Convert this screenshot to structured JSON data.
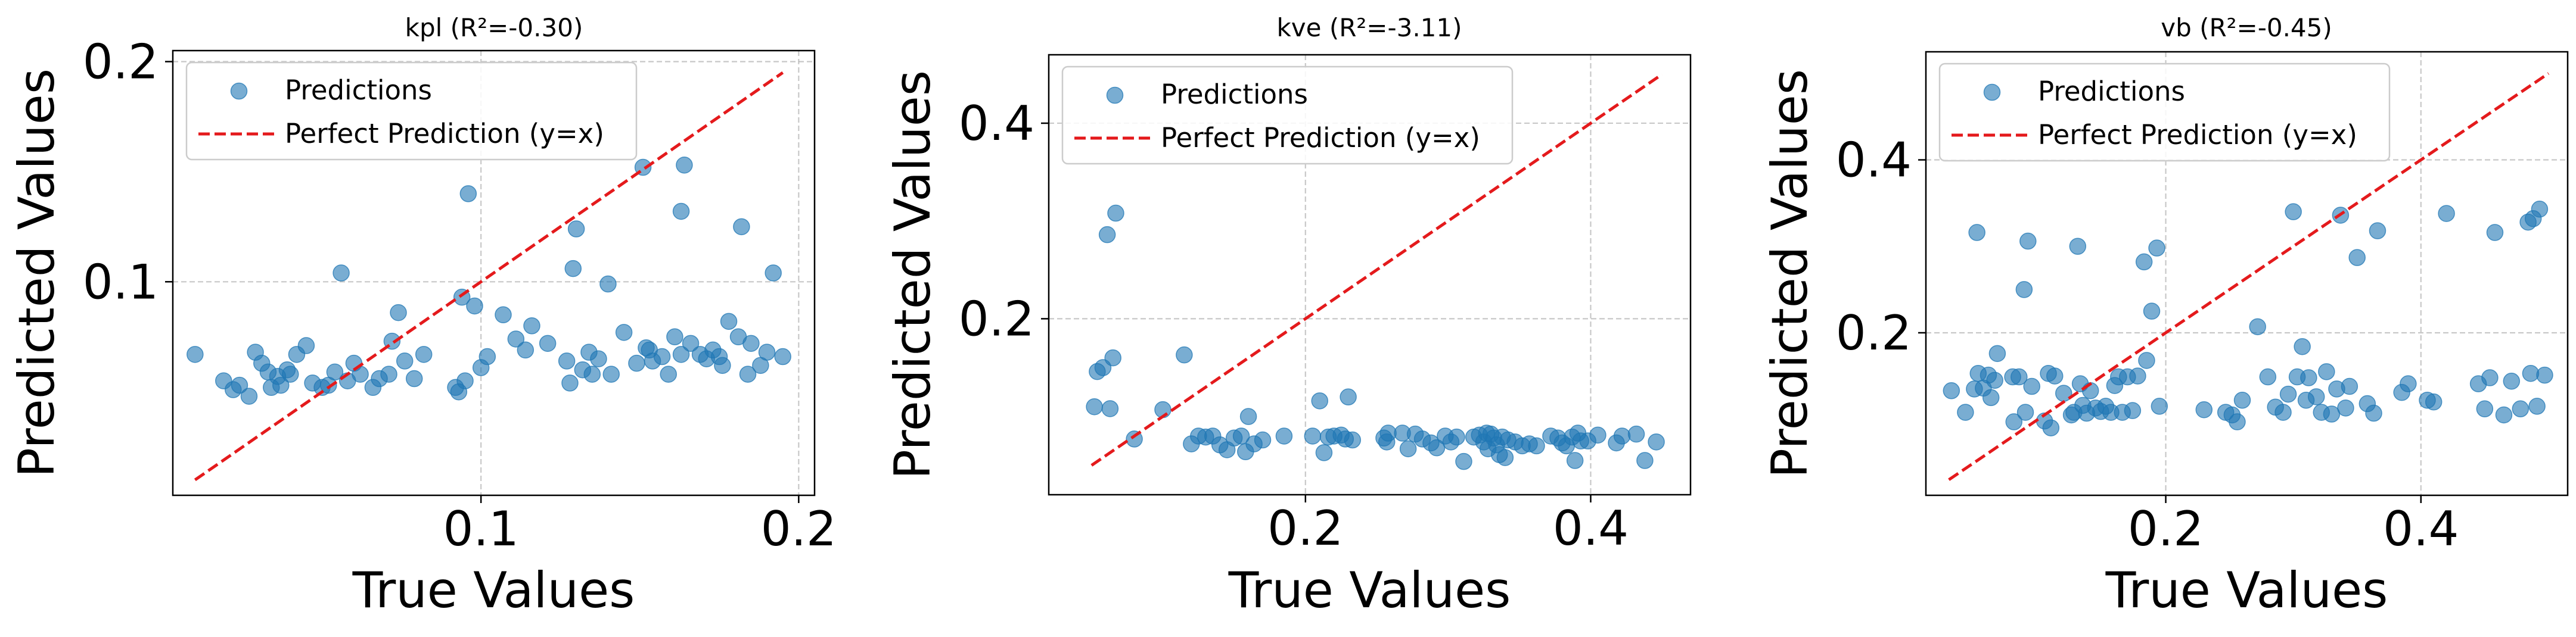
{
  "chart_data": [
    {
      "type": "scatter",
      "title": "kpl (R²=-0.30)",
      "xlabel": "True Values",
      "ylabel": "Predicted Values",
      "xlim": [
        0.003,
        0.205
      ],
      "ylim": [
        0.003,
        0.205
      ],
      "xticks": [
        0.1,
        0.2
      ],
      "xtick_labels": [
        "0.1",
        "0.2"
      ],
      "yticks": [
        0.1,
        0.2
      ],
      "ytick_labels": [
        "0.1",
        "0.2"
      ],
      "grid": true,
      "legend": {
        "position": "top-left",
        "entries": [
          "Predictions",
          "Perfect Prediction (y=x)"
        ]
      },
      "reference_line": [
        0.01,
        0.195
      ],
      "series": [
        {
          "name": "Predictions",
          "color": "#1f77b4",
          "points": [
            [
              0.01,
              0.067
            ],
            [
              0.019,
              0.055
            ],
            [
              0.022,
              0.051
            ],
            [
              0.024,
              0.053
            ],
            [
              0.027,
              0.048
            ],
            [
              0.029,
              0.068
            ],
            [
              0.031,
              0.063
            ],
            [
              0.033,
              0.059
            ],
            [
              0.034,
              0.052
            ],
            [
              0.036,
              0.057
            ],
            [
              0.037,
              0.053
            ],
            [
              0.039,
              0.06
            ],
            [
              0.04,
              0.058
            ],
            [
              0.042,
              0.067
            ],
            [
              0.045,
              0.071
            ],
            [
              0.047,
              0.054
            ],
            [
              0.05,
              0.052
            ],
            [
              0.052,
              0.053
            ],
            [
              0.054,
              0.059
            ],
            [
              0.056,
              0.104
            ],
            [
              0.058,
              0.055
            ],
            [
              0.06,
              0.063
            ],
            [
              0.062,
              0.058
            ],
            [
              0.066,
              0.052
            ],
            [
              0.068,
              0.056
            ],
            [
              0.071,
              0.058
            ],
            [
              0.072,
              0.073
            ],
            [
              0.074,
              0.086
            ],
            [
              0.076,
              0.064
            ],
            [
              0.079,
              0.056
            ],
            [
              0.082,
              0.067
            ],
            [
              0.092,
              0.052
            ],
            [
              0.093,
              0.05
            ],
            [
              0.094,
              0.093
            ],
            [
              0.095,
              0.055
            ],
            [
              0.096,
              0.14
            ],
            [
              0.098,
              0.089
            ],
            [
              0.1,
              0.061
            ],
            [
              0.102,
              0.066
            ],
            [
              0.107,
              0.085
            ],
            [
              0.111,
              0.074
            ],
            [
              0.114,
              0.069
            ],
            [
              0.116,
              0.08
            ],
            [
              0.121,
              0.072
            ],
            [
              0.127,
              0.064
            ],
            [
              0.128,
              0.054
            ],
            [
              0.129,
              0.106
            ],
            [
              0.13,
              0.124
            ],
            [
              0.132,
              0.06
            ],
            [
              0.134,
              0.068
            ],
            [
              0.135,
              0.058
            ],
            [
              0.137,
              0.065
            ],
            [
              0.14,
              0.099
            ],
            [
              0.141,
              0.058
            ],
            [
              0.145,
              0.077
            ],
            [
              0.149,
              0.063
            ],
            [
              0.151,
              0.152
            ],
            [
              0.152,
              0.07
            ],
            [
              0.153,
              0.069
            ],
            [
              0.154,
              0.064
            ],
            [
              0.157,
              0.066
            ],
            [
              0.159,
              0.058
            ],
            [
              0.161,
              0.075
            ],
            [
              0.163,
              0.132
            ],
            [
              0.163,
              0.067
            ],
            [
              0.164,
              0.153
            ],
            [
              0.166,
              0.072
            ],
            [
              0.169,
              0.067
            ],
            [
              0.171,
              0.065
            ],
            [
              0.173,
              0.069
            ],
            [
              0.175,
              0.066
            ],
            [
              0.176,
              0.062
            ],
            [
              0.178,
              0.082
            ],
            [
              0.181,
              0.075
            ],
            [
              0.182,
              0.125
            ],
            [
              0.184,
              0.058
            ],
            [
              0.185,
              0.072
            ],
            [
              0.188,
              0.062
            ],
            [
              0.19,
              0.068
            ],
            [
              0.192,
              0.104
            ],
            [
              0.195,
              0.066
            ]
          ]
        }
      ]
    },
    {
      "type": "scatter",
      "title": "kve (R²=-3.11)",
      "xlabel": "True Values",
      "ylabel": "Predicted Values",
      "xlim": [
        0.02,
        0.47
      ],
      "ylim": [
        0.02,
        0.47
      ],
      "xticks": [
        0.2,
        0.4
      ],
      "xtick_labels": [
        "0.2",
        "0.4"
      ],
      "yticks": [
        0.2,
        0.4
      ],
      "ytick_labels": [
        "0.2",
        "0.4"
      ],
      "grid": true,
      "legend": {
        "position": "top-left",
        "entries": [
          "Predictions",
          "Perfect Prediction (y=x)"
        ]
      },
      "reference_line": [
        0.05,
        0.45
      ],
      "series": [
        {
          "name": "Predictions",
          "color": "#1f77b4",
          "points": [
            [
              0.052,
              0.11
            ],
            [
              0.054,
              0.146
            ],
            [
              0.058,
              0.15
            ],
            [
              0.061,
              0.286
            ],
            [
              0.063,
              0.108
            ],
            [
              0.065,
              0.16
            ],
            [
              0.067,
              0.308
            ],
            [
              0.08,
              0.077
            ],
            [
              0.1,
              0.107
            ],
            [
              0.115,
              0.163
            ],
            [
              0.12,
              0.072
            ],
            [
              0.125,
              0.08
            ],
            [
              0.13,
              0.079
            ],
            [
              0.135,
              0.08
            ],
            [
              0.14,
              0.071
            ],
            [
              0.145,
              0.066
            ],
            [
              0.15,
              0.078
            ],
            [
              0.155,
              0.08
            ],
            [
              0.158,
              0.064
            ],
            [
              0.16,
              0.1
            ],
            [
              0.164,
              0.072
            ],
            [
              0.17,
              0.076
            ],
            [
              0.185,
              0.08
            ],
            [
              0.205,
              0.08
            ],
            [
              0.21,
              0.116
            ],
            [
              0.213,
              0.063
            ],
            [
              0.216,
              0.079
            ],
            [
              0.22,
              0.08
            ],
            [
              0.225,
              0.081
            ],
            [
              0.228,
              0.077
            ],
            [
              0.23,
              0.12
            ],
            [
              0.233,
              0.076
            ],
            [
              0.255,
              0.078
            ],
            [
              0.257,
              0.074
            ],
            [
              0.258,
              0.083
            ],
            [
              0.268,
              0.083
            ],
            [
              0.272,
              0.067
            ],
            [
              0.277,
              0.082
            ],
            [
              0.282,
              0.077
            ],
            [
              0.288,
              0.073
            ],
            [
              0.292,
              0.068
            ],
            [
              0.298,
              0.08
            ],
            [
              0.302,
              0.074
            ],
            [
              0.306,
              0.079
            ],
            [
              0.311,
              0.054
            ],
            [
              0.318,
              0.079
            ],
            [
              0.322,
              0.081
            ],
            [
              0.325,
              0.074
            ],
            [
              0.327,
              0.083
            ],
            [
              0.328,
              0.067
            ],
            [
              0.33,
              0.082
            ],
            [
              0.332,
              0.078
            ],
            [
              0.334,
              0.071
            ],
            [
              0.336,
              0.061
            ],
            [
              0.338,
              0.079
            ],
            [
              0.34,
              0.058
            ],
            [
              0.342,
              0.076
            ],
            [
              0.347,
              0.074
            ],
            [
              0.352,
              0.07
            ],
            [
              0.357,
              0.072
            ],
            [
              0.362,
              0.07
            ],
            [
              0.372,
              0.08
            ],
            [
              0.377,
              0.078
            ],
            [
              0.38,
              0.073
            ],
            [
              0.383,
              0.07
            ],
            [
              0.387,
              0.079
            ],
            [
              0.389,
              0.055
            ],
            [
              0.391,
              0.083
            ],
            [
              0.393,
              0.075
            ],
            [
              0.398,
              0.075
            ],
            [
              0.405,
              0.081
            ],
            [
              0.418,
              0.073
            ],
            [
              0.422,
              0.08
            ],
            [
              0.432,
              0.082
            ],
            [
              0.438,
              0.055
            ],
            [
              0.446,
              0.074
            ]
          ]
        }
      ]
    },
    {
      "type": "scatter",
      "title": "vb (R²=-0.45)",
      "xlabel": "True Values",
      "ylabel": "Predicted Values",
      "xlim": [
        0.012,
        0.515
      ],
      "ylim": [
        0.012,
        0.525
      ],
      "xticks": [
        0.2,
        0.4
      ],
      "xtick_labels": [
        "0.2",
        "0.4"
      ],
      "yticks": [
        0.2,
        0.4
      ],
      "ytick_labels": [
        "0.2",
        "0.4"
      ],
      "grid": true,
      "legend": {
        "position": "top-left",
        "entries": [
          "Predictions",
          "Perfect Prediction (y=x)"
        ]
      },
      "reference_line": [
        0.03,
        0.5
      ],
      "series": [
        {
          "name": "Predictions",
          "color": "#1f77b4",
          "points": [
            [
              0.032,
              0.133
            ],
            [
              0.043,
              0.108
            ],
            [
              0.05,
              0.135
            ],
            [
              0.052,
              0.316
            ],
            [
              0.053,
              0.153
            ],
            [
              0.057,
              0.136
            ],
            [
              0.061,
              0.151
            ],
            [
              0.063,
              0.125
            ],
            [
              0.066,
              0.145
            ],
            [
              0.068,
              0.176
            ],
            [
              0.08,
              0.149
            ],
            [
              0.081,
              0.097
            ],
            [
              0.085,
              0.149
            ],
            [
              0.089,
              0.25
            ],
            [
              0.09,
              0.108
            ],
            [
              0.092,
              0.306
            ],
            [
              0.095,
              0.138
            ],
            [
              0.105,
              0.098
            ],
            [
              0.108,
              0.153
            ],
            [
              0.11,
              0.09
            ],
            [
              0.113,
              0.15
            ],
            [
              0.12,
              0.13
            ],
            [
              0.126,
              0.105
            ],
            [
              0.128,
              0.108
            ],
            [
              0.131,
              0.3
            ],
            [
              0.133,
              0.141
            ],
            [
              0.135,
              0.116
            ],
            [
              0.138,
              0.107
            ],
            [
              0.141,
              0.133
            ],
            [
              0.145,
              0.113
            ],
            [
              0.149,
              0.109
            ],
            [
              0.153,
              0.115
            ],
            [
              0.157,
              0.108
            ],
            [
              0.16,
              0.139
            ],
            [
              0.163,
              0.149
            ],
            [
              0.166,
              0.108
            ],
            [
              0.17,
              0.149
            ],
            [
              0.174,
              0.11
            ],
            [
              0.178,
              0.15
            ],
            [
              0.183,
              0.282
            ],
            [
              0.185,
              0.168
            ],
            [
              0.189,
              0.225
            ],
            [
              0.193,
              0.298
            ],
            [
              0.195,
              0.115
            ],
            [
              0.23,
              0.111
            ],
            [
              0.247,
              0.108
            ],
            [
              0.252,
              0.105
            ],
            [
              0.256,
              0.097
            ],
            [
              0.26,
              0.122
            ],
            [
              0.272,
              0.207
            ],
            [
              0.28,
              0.149
            ],
            [
              0.286,
              0.114
            ],
            [
              0.292,
              0.108
            ],
            [
              0.296,
              0.129
            ],
            [
              0.3,
              0.34
            ],
            [
              0.303,
              0.149
            ],
            [
              0.307,
              0.184
            ],
            [
              0.31,
              0.122
            ],
            [
              0.312,
              0.148
            ],
            [
              0.318,
              0.126
            ],
            [
              0.322,
              0.108
            ],
            [
              0.326,
              0.155
            ],
            [
              0.33,
              0.106
            ],
            [
              0.334,
              0.135
            ],
            [
              0.337,
              0.336
            ],
            [
              0.341,
              0.113
            ],
            [
              0.344,
              0.138
            ],
            [
              0.35,
              0.287
            ],
            [
              0.358,
              0.118
            ],
            [
              0.363,
              0.107
            ],
            [
              0.366,
              0.318
            ],
            [
              0.385,
              0.131
            ],
            [
              0.39,
              0.141
            ],
            [
              0.405,
              0.122
            ],
            [
              0.41,
              0.12
            ],
            [
              0.42,
              0.338
            ],
            [
              0.445,
              0.141
            ],
            [
              0.45,
              0.112
            ],
            [
              0.454,
              0.148
            ],
            [
              0.458,
              0.316
            ],
            [
              0.465,
              0.105
            ],
            [
              0.471,
              0.144
            ],
            [
              0.478,
              0.112
            ],
            [
              0.484,
              0.328
            ],
            [
              0.486,
              0.153
            ],
            [
              0.488,
              0.332
            ],
            [
              0.491,
              0.115
            ],
            [
              0.493,
              0.343
            ],
            [
              0.497,
              0.151
            ]
          ]
        }
      ]
    }
  ]
}
